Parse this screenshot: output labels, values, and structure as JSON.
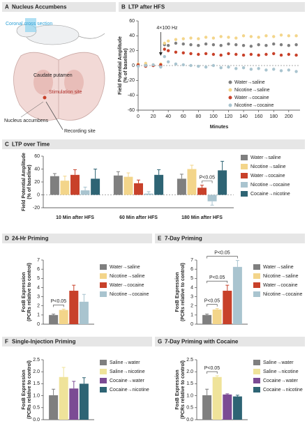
{
  "panel_a": {
    "letter": "A",
    "title": "Nucleus Accumbens",
    "labels": [
      "Coronal cross section",
      "Caudate putamen",
      "Stimulation site",
      "Nucleus accumbens",
      "Recording site"
    ]
  },
  "chart_data": [
    {
      "type": "line",
      "letter": "B",
      "title": "LTP after HFS",
      "xlabel": "Minutes",
      "ylabel": [
        "Field Potential Amplitude",
        "(% of baseline)"
      ],
      "annotation": {
        "text": "4×100 Hz",
        "x": 30
      },
      "zero_line": true,
      "legend": "lower right",
      "x": [
        0,
        10,
        20,
        30,
        35,
        40,
        50,
        60,
        70,
        80,
        90,
        100,
        110,
        120,
        130,
        140,
        150,
        160,
        170,
        180,
        190,
        200,
        210
      ],
      "xlim": [
        0,
        215
      ],
      "xticks": [
        0,
        20,
        40,
        60,
        80,
        100,
        120,
        140,
        160,
        180,
        200
      ],
      "ylim": [
        -60,
        60
      ],
      "yticks": [
        -60,
        -40,
        -20,
        0,
        20,
        40,
        60
      ],
      "series": [
        {
          "name": "Water→saline",
          "color": "#7f7f7f",
          "values": [
            0,
            1,
            0,
            -1,
            28,
            27,
            30,
            29,
            28,
            27,
            29,
            28,
            27,
            29,
            28,
            27,
            26,
            28,
            27,
            29,
            28,
            27,
            28
          ]
        },
        {
          "name": "Nicotine→saline",
          "color": "#f3d58a",
          "values": [
            2,
            3,
            1,
            2,
            30,
            33,
            35,
            36,
            37,
            36,
            38,
            37,
            39,
            38,
            37,
            40,
            39,
            38,
            40,
            39,
            41,
            40,
            40
          ]
        },
        {
          "name": "Water→cocaine",
          "color": "#c8412a",
          "values": [
            1,
            -1,
            0,
            1,
            22,
            20,
            18,
            17,
            16,
            15,
            16,
            15,
            14,
            16,
            15,
            14,
            15,
            14,
            15,
            16,
            14,
            15,
            14
          ]
        },
        {
          "name": "Nicotine→cocaine",
          "color": "#a9c4cf",
          "values": [
            -1,
            0,
            1,
            -2,
            12,
            5,
            2,
            1,
            0,
            -1,
            -2,
            0,
            -3,
            -2,
            -4,
            -3,
            -5,
            -4,
            -6,
            -5,
            -7,
            -6,
            -8
          ]
        }
      ]
    },
    {
      "type": "bar",
      "letter": "C",
      "title": "LTP over Time",
      "ylabel": [
        "Field Potential Amplitude",
        "(% of baseline)"
      ],
      "zero_line": true,
      "categories": [
        "10 Min after HFS",
        "60 Min after HFS",
        "180 Min after HFS"
      ],
      "ylim": [
        -20,
        60
      ],
      "yticks": [
        -20,
        0,
        20,
        40,
        60
      ],
      "brackets": [
        {
          "text": "P<0.05",
          "category": 2,
          "from": 2,
          "to": 3
        }
      ],
      "series": [
        {
          "name": "Water→saline",
          "color": "#7f7f7f",
          "values": [
            29,
            30,
            25
          ],
          "errors": [
            4,
            6,
            7
          ]
        },
        {
          "name": "Nicotine→saline",
          "color": "#f3d58a",
          "values": [
            22,
            28,
            40
          ],
          "errors": [
            7,
            6,
            6
          ]
        },
        {
          "name": "Water→cocaine",
          "color": "#c8412a",
          "values": [
            31,
            18,
            11
          ],
          "errors": [
            8,
            5,
            4
          ]
        },
        {
          "name": "Nicotine→cocaine",
          "color": "#a9c4cf",
          "values": [
            7,
            2,
            -10
          ],
          "errors": [
            5,
            3,
            6
          ]
        },
        {
          "name": "Cocaine→nicotine",
          "color": "#2e6474",
          "values": [
            25,
            31,
            38
          ],
          "errors": [
            15,
            8,
            14
          ]
        }
      ]
    },
    {
      "type": "bar",
      "letter": "D",
      "title": "24-Hr Priming",
      "ylabel": [
        "FosB Expression",
        "(PCRs relative to control)"
      ],
      "ylim": [
        0,
        7
      ],
      "yticks": [
        0,
        1,
        2,
        3,
        4,
        5,
        6,
        7
      ],
      "brackets": [
        {
          "text": "P<0.05",
          "from": 0,
          "to": 1
        }
      ],
      "series": [
        {
          "name": "Water→saline",
          "color": "#7f7f7f",
          "values": [
            1.0
          ],
          "errors": [
            0.1
          ]
        },
        {
          "name": "Nicotine→saline",
          "color": "#f3d58a",
          "values": [
            1.55
          ],
          "errors": [
            0.1
          ]
        },
        {
          "name": "Water→cocaine",
          "color": "#c8412a",
          "values": [
            3.65
          ],
          "errors": [
            0.6
          ]
        },
        {
          "name": "Nicotine→cocaine",
          "color": "#a9c4cf",
          "values": [
            2.45
          ],
          "errors": [
            0.8
          ]
        }
      ]
    },
    {
      "type": "bar",
      "letter": "E",
      "title": "7-Day Priming",
      "ylabel": [
        "FosB Expression",
        "(PCRs relative to control)"
      ],
      "ylim": [
        0,
        7
      ],
      "yticks": [
        0,
        1,
        2,
        3,
        4,
        5,
        6,
        7
      ],
      "brackets": [
        {
          "text": "P<0.05",
          "from": 0,
          "to": 1
        },
        {
          "text": "P<0.05",
          "from": 0,
          "to": 2
        },
        {
          "text": "P<0.05",
          "from": 0,
          "to": 3
        }
      ],
      "series": [
        {
          "name": "Water→saline",
          "color": "#7f7f7f",
          "values": [
            1.0
          ],
          "errors": [
            0.1
          ]
        },
        {
          "name": "Nicotine→saline",
          "color": "#f3d58a",
          "values": [
            1.6
          ],
          "errors": [
            0.1
          ]
        },
        {
          "name": "Water→cocaine",
          "color": "#c8412a",
          "values": [
            3.65
          ],
          "errors": [
            0.6
          ]
        },
        {
          "name": "Nicotine→cocaine",
          "color": "#a9c4cf",
          "values": [
            6.25
          ],
          "errors": [
            0.7
          ]
        }
      ]
    },
    {
      "type": "bar",
      "letter": "F",
      "title": "Single-Injection Priming",
      "ylabel": [
        "FosB Expression",
        "(PCRs relative to control)"
      ],
      "ylim": [
        0,
        2.5
      ],
      "yticks": [
        {
          "value": 0,
          "label": "0.0"
        },
        0.5,
        {
          "value": 1,
          "label": "1.0"
        },
        1.5,
        {
          "value": 2,
          "label": "2.0"
        },
        2.5
      ],
      "brackets": [],
      "series": [
        {
          "name": "Saline→water",
          "color": "#7f7f7f",
          "values": [
            1.02
          ],
          "errors": [
            0.25
          ]
        },
        {
          "name": "Saline→nicotine",
          "color": "#efe39a",
          "values": [
            1.78
          ],
          "errors": [
            0.4
          ]
        },
        {
          "name": "Cocaine→water",
          "color": "#7b4b94",
          "values": [
            1.3
          ],
          "errors": [
            0.3
          ]
        },
        {
          "name": "Cocaine→nicotine",
          "color": "#2e6474",
          "values": [
            1.5
          ],
          "errors": [
            0.25
          ]
        }
      ]
    },
    {
      "type": "bar",
      "letter": "G",
      "title": "7-Day Priming with Cocaine",
      "ylabel": [
        "FosB Expression",
        "(PCRs relative to control)"
      ],
      "ylim": [
        0,
        2.5
      ],
      "yticks": [
        {
          "value": 0,
          "label": "0.0"
        },
        0.5,
        {
          "value": 1,
          "label": "1.0"
        },
        1.5,
        {
          "value": 2,
          "label": "2.0"
        },
        2.5
      ],
      "brackets": [
        {
          "text": "P<0.05",
          "from": 0,
          "to": 1
        }
      ],
      "series": [
        {
          "name": "Saline→water",
          "color": "#7f7f7f",
          "values": [
            1.02
          ],
          "errors": [
            0.25
          ]
        },
        {
          "name": "Saline→nicotine",
          "color": "#efe39a",
          "values": [
            1.78
          ],
          "errors": [
            0.05
          ]
        },
        {
          "name": "Cocaine→water",
          "color": "#7b4b94",
          "values": [
            1.05
          ],
          "errors": [
            0.03
          ]
        },
        {
          "name": "Cocaine→nicotine",
          "color": "#2e6474",
          "values": [
            0.97
          ],
          "errors": [
            0.05
          ]
        }
      ]
    }
  ]
}
